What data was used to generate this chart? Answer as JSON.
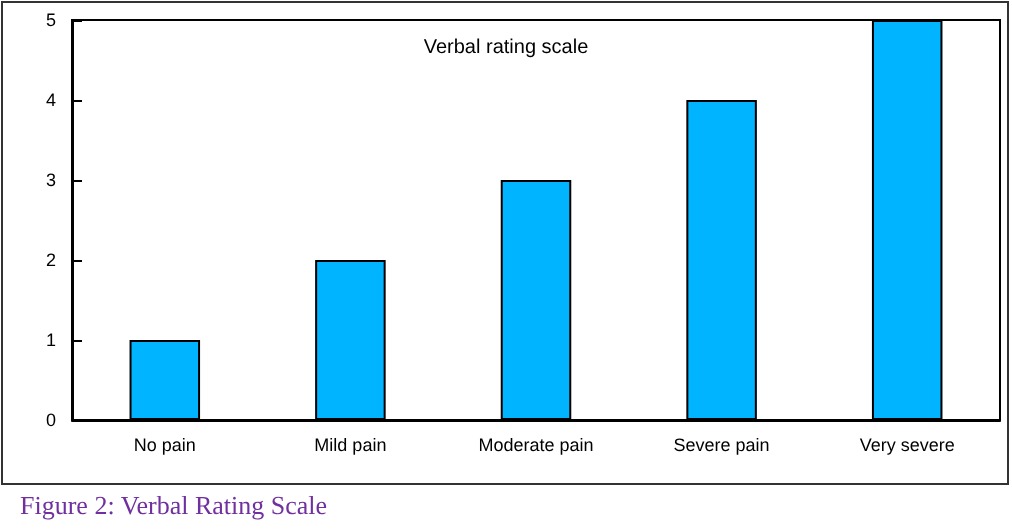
{
  "chart_data": {
    "type": "bar",
    "title": "Verbal rating scale",
    "categories": [
      "No pain",
      "Mild pain",
      "Moderate pain",
      "Severe pain",
      "Very severe"
    ],
    "values": [
      1,
      2,
      3,
      4,
      5
    ],
    "color": "#00b4ff",
    "ylim": [
      0,
      5
    ],
    "yticks": [
      0,
      1,
      2,
      3,
      4,
      5
    ],
    "grid": false,
    "annotations": [
      "Figure 2: Verbal Rating Scale"
    ]
  }
}
